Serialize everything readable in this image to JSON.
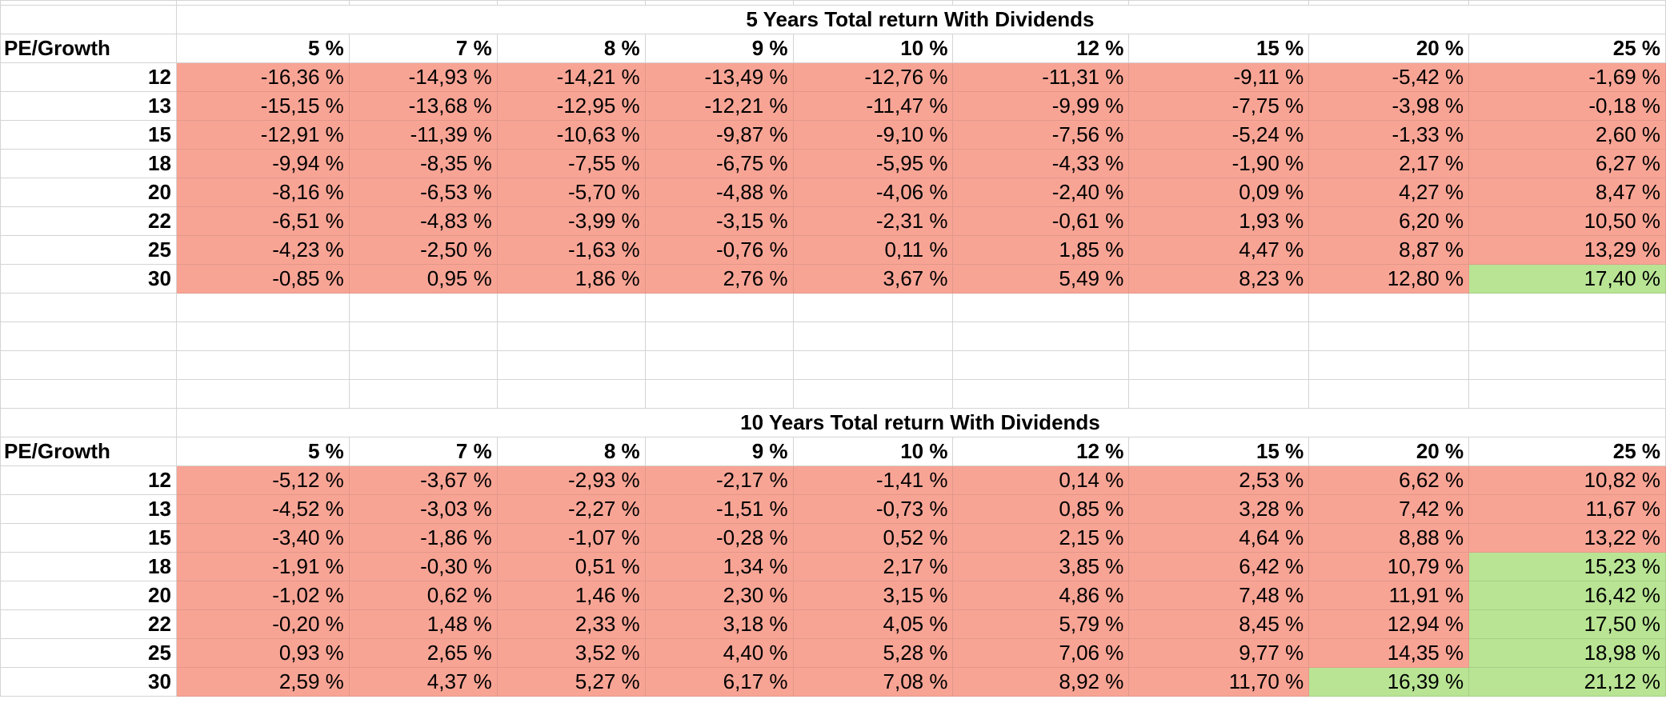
{
  "colors": {
    "negative_fill": "#f8a495",
    "highlight_fill": "#b8e494",
    "grid_line": "#d4d4d4"
  },
  "sheet": {
    "tables": [
      {
        "title": "5 Years Total return With Dividends",
        "row_header": "PE/Growth",
        "growth_rates": [
          "5 %",
          "7 %",
          "8 %",
          "9 %",
          "10 %",
          "12 %",
          "15 %",
          "20 %",
          "25 %"
        ],
        "rows": [
          {
            "pe": "12",
            "values": [
              "-16,36 %",
              "-14,93 %",
              "-14,21 %",
              "-13,49 %",
              "-12,76 %",
              "-11,31 %",
              "-9,11 %",
              "-5,42 %",
              "-1,69 %"
            ]
          },
          {
            "pe": "13",
            "values": [
              "-15,15 %",
              "-13,68 %",
              "-12,95 %",
              "-12,21 %",
              "-11,47 %",
              "-9,99 %",
              "-7,75 %",
              "-3,98 %",
              "-0,18 %"
            ]
          },
          {
            "pe": "15",
            "values": [
              "-12,91 %",
              "-11,39 %",
              "-10,63 %",
              "-9,87 %",
              "-9,10 %",
              "-7,56 %",
              "-5,24 %",
              "-1,33 %",
              "2,60 %"
            ]
          },
          {
            "pe": "18",
            "values": [
              "-9,94 %",
              "-8,35 %",
              "-7,55 %",
              "-6,75 %",
              "-5,95 %",
              "-4,33 %",
              "-1,90 %",
              "2,17 %",
              "6,27 %"
            ]
          },
          {
            "pe": "20",
            "values": [
              "-8,16 %",
              "-6,53 %",
              "-5,70 %",
              "-4,88 %",
              "-4,06 %",
              "-2,40 %",
              "0,09 %",
              "4,27 %",
              "8,47 %"
            ]
          },
          {
            "pe": "22",
            "values": [
              "-6,51 %",
              "-4,83 %",
              "-3,99 %",
              "-3,15 %",
              "-2,31 %",
              "-0,61 %",
              "1,93 %",
              "6,20 %",
              "10,50 %"
            ]
          },
          {
            "pe": "25",
            "values": [
              "-4,23 %",
              "-2,50 %",
              "-1,63 %",
              "-0,76 %",
              "0,11 %",
              "1,85 %",
              "4,47 %",
              "8,87 %",
              "13,29 %"
            ]
          },
          {
            "pe": "30",
            "values": [
              "-0,85 %",
              "0,95 %",
              "1,86 %",
              "2,76 %",
              "3,67 %",
              "5,49 %",
              "8,23 %",
              "12,80 %",
              "17,40 %"
            ]
          }
        ],
        "highlighted": [
          [
            7,
            8
          ]
        ]
      },
      {
        "title": "10 Years Total return With Dividends",
        "row_header": "PE/Growth",
        "growth_rates": [
          "5 %",
          "7 %",
          "8 %",
          "9 %",
          "10 %",
          "12 %",
          "15 %",
          "20 %",
          "25 %"
        ],
        "rows": [
          {
            "pe": "12",
            "values": [
              "-5,12 %",
              "-3,67 %",
              "-2,93 %",
              "-2,17 %",
              "-1,41 %",
              "0,14 %",
              "2,53 %",
              "6,62 %",
              "10,82 %"
            ]
          },
          {
            "pe": "13",
            "values": [
              "-4,52 %",
              "-3,03 %",
              "-2,27 %",
              "-1,51 %",
              "-0,73 %",
              "0,85 %",
              "3,28 %",
              "7,42 %",
              "11,67 %"
            ]
          },
          {
            "pe": "15",
            "values": [
              "-3,40 %",
              "-1,86 %",
              "-1,07 %",
              "-0,28 %",
              "0,52 %",
              "2,15 %",
              "4,64 %",
              "8,88 %",
              "13,22 %"
            ]
          },
          {
            "pe": "18",
            "values": [
              "-1,91 %",
              "-0,30 %",
              "0,51 %",
              "1,34 %",
              "2,17 %",
              "3,85 %",
              "6,42 %",
              "10,79 %",
              "15,23 %"
            ]
          },
          {
            "pe": "20",
            "values": [
              "-1,02 %",
              "0,62 %",
              "1,46 %",
              "2,30 %",
              "3,15 %",
              "4,86 %",
              "7,48 %",
              "11,91 %",
              "16,42 %"
            ]
          },
          {
            "pe": "22",
            "values": [
              "-0,20 %",
              "1,48 %",
              "2,33 %",
              "3,18 %",
              "4,05 %",
              "5,79 %",
              "8,45 %",
              "12,94 %",
              "17,50 %"
            ]
          },
          {
            "pe": "25",
            "values": [
              "0,93 %",
              "2,65 %",
              "3,52 %",
              "4,40 %",
              "5,28 %",
              "7,06 %",
              "9,77 %",
              "14,35 %",
              "18,98 %"
            ]
          },
          {
            "pe": "30",
            "values": [
              "2,59 %",
              "4,37 %",
              "5,27 %",
              "6,17 %",
              "7,08 %",
              "8,92 %",
              "11,70 %",
              "16,39 %",
              "21,12 %"
            ]
          }
        ],
        "highlighted": [
          [
            3,
            8
          ],
          [
            4,
            8
          ],
          [
            5,
            8
          ],
          [
            6,
            8
          ],
          [
            7,
            7
          ],
          [
            7,
            8
          ]
        ]
      }
    ]
  }
}
